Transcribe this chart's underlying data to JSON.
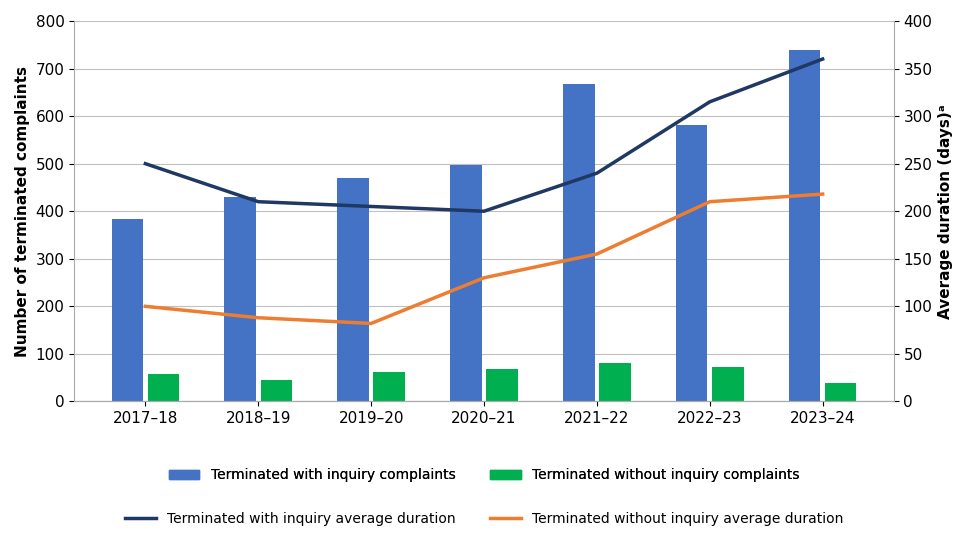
{
  "years": [
    "2017–18",
    "2018–19",
    "2019–20",
    "2020–21",
    "2021–22",
    "2022–23",
    "2023–24"
  ],
  "terminated_with_inquiry": [
    383,
    430,
    470,
    498,
    668,
    582,
    740
  ],
  "terminated_without_inquiry": [
    57,
    45,
    62,
    68,
    80,
    72,
    38
  ],
  "avg_duration_with_inquiry": [
    250,
    210,
    205,
    200,
    240,
    315,
    360
  ],
  "avg_duration_without_inquiry": [
    100,
    88,
    82,
    130,
    155,
    210,
    218
  ],
  "bar_color_inquiry": "#4472c4",
  "bar_color_no_inquiry": "#00b050",
  "line_color_inquiry": "#1f3864",
  "line_color_no_inquiry": "#ed7d31",
  "ylabel_left": "Number of terminated complaints",
  "ylabel_right": "Average duration (days)ᵃ",
  "ylim_left": [
    0,
    800
  ],
  "ylim_right": [
    0,
    400
  ],
  "yticks_left": [
    0,
    100,
    200,
    300,
    400,
    500,
    600,
    700,
    800
  ],
  "yticks_right": [
    0,
    50,
    100,
    150,
    200,
    250,
    300,
    350,
    400
  ],
  "legend_labels": [
    "Terminated with inquiry complaints",
    "Terminated without inquiry complaints",
    "Terminated with inquiry average duration",
    "Terminated without inquiry average duration"
  ],
  "background_color": "#ffffff",
  "grid_color": "#c0c0c0"
}
